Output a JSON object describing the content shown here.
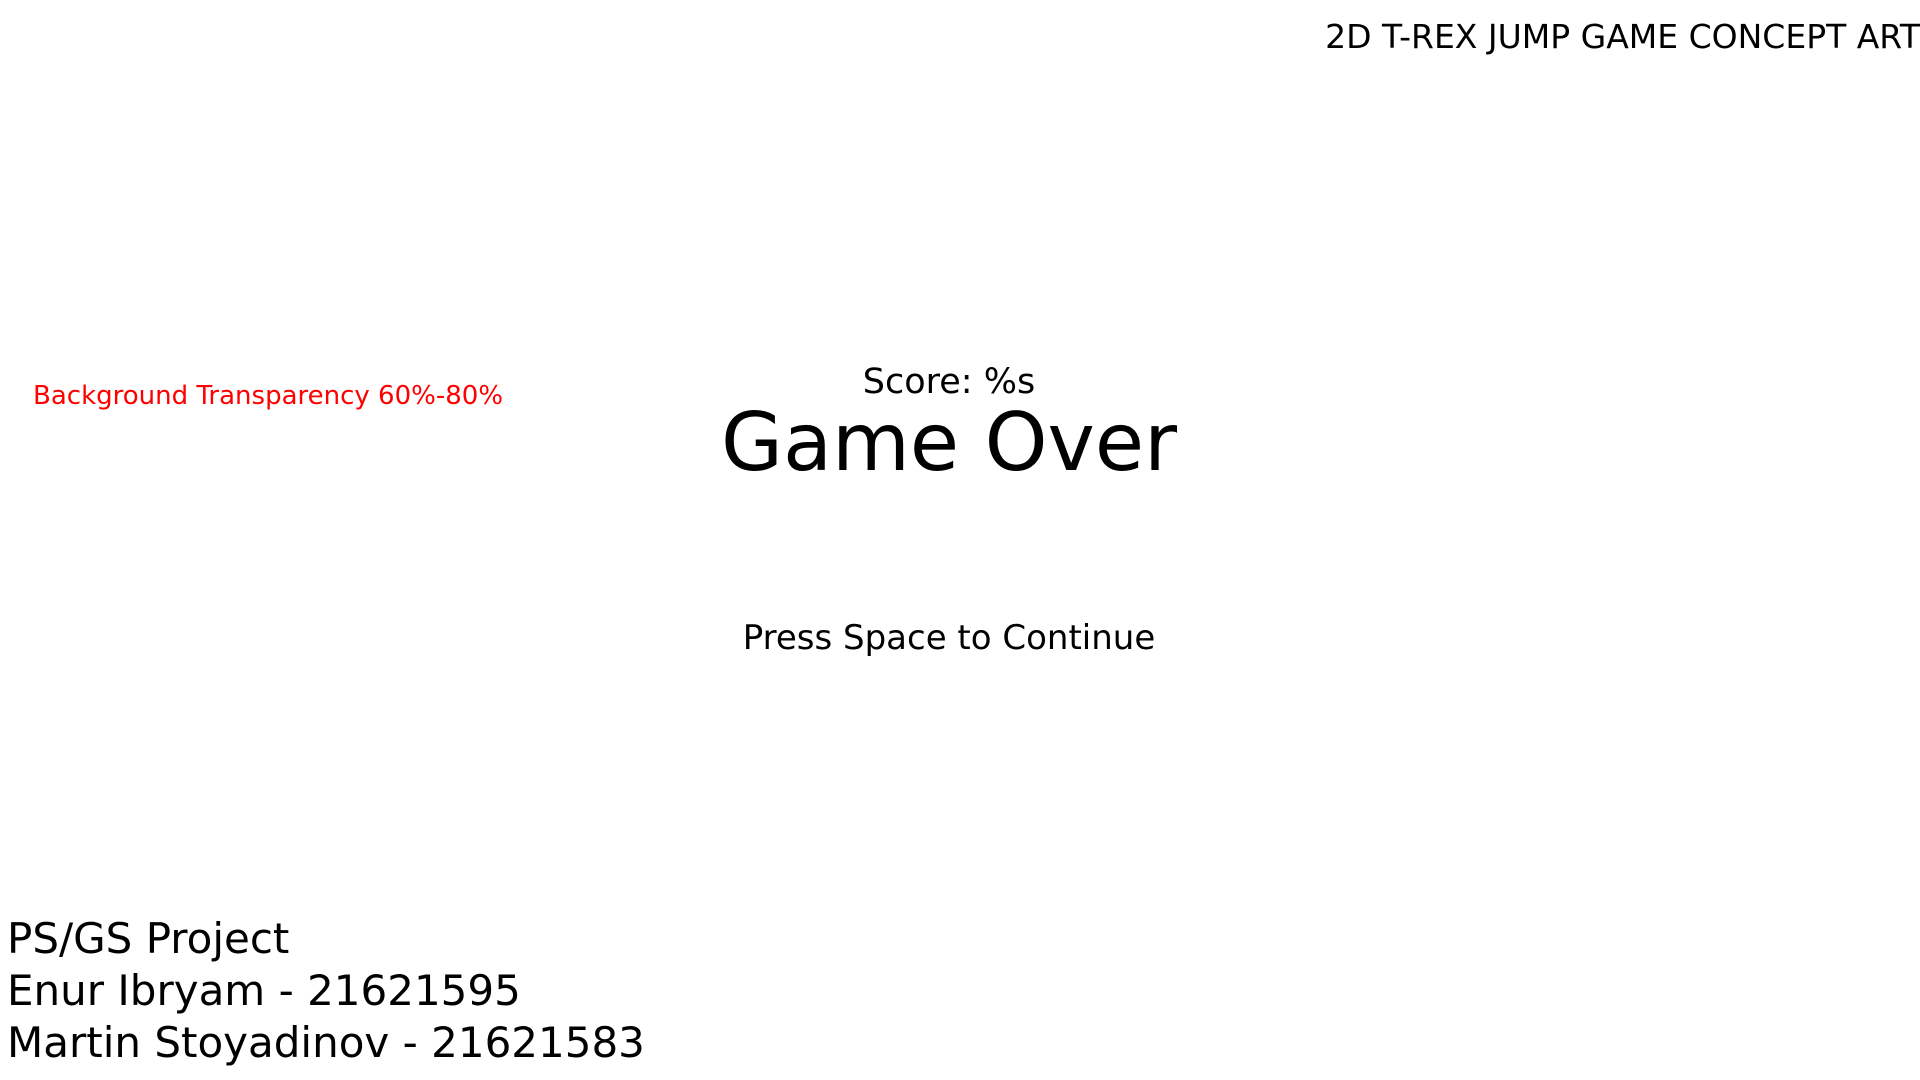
{
  "header": {
    "concept_title": "2D T-REX JUMP GAME CONCEPT ART"
  },
  "annotation": {
    "text": "Background Transparency 60%-80%",
    "color": "#ff0000"
  },
  "game_over_screen": {
    "score_label": "Score: %s",
    "title": "Game Over",
    "prompt": "Press Space to Continue"
  },
  "credits": {
    "project": "PS/GS Project",
    "author_1": "Enur Ibryam - 21621595",
    "author_2": "Martin Stoyadinov - 21621583"
  },
  "colors": {
    "background": "#ffffff",
    "text": "#000000"
  }
}
